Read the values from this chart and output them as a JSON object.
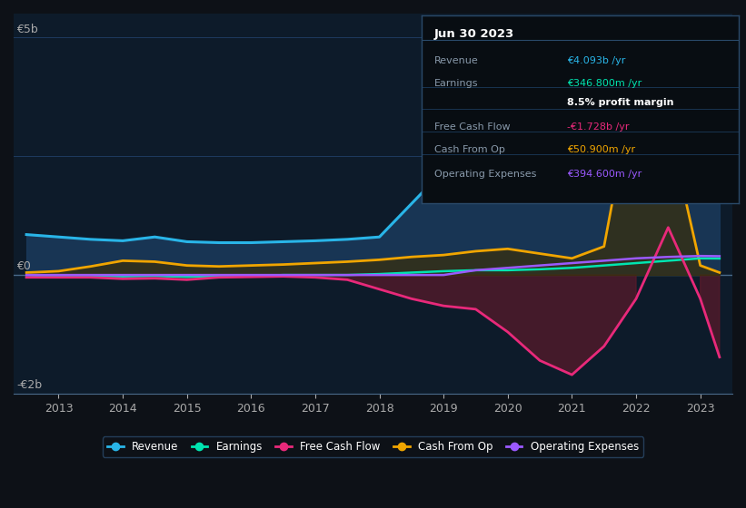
{
  "background_color": "#0d1117",
  "plot_bg_color": "#0d1b2a",
  "grid_color": "#1e3a5f",
  "ylabel_5b": "€5b",
  "ylabel_0": "€0",
  "ylabel_m2b": "-€2b",
  "years": [
    2012.5,
    2013,
    2013.5,
    2014,
    2014.5,
    2015,
    2015.5,
    2016,
    2016.5,
    2017,
    2017.5,
    2018,
    2018.5,
    2019,
    2019.5,
    2020,
    2020.5,
    2021,
    2021.5,
    2022,
    2022.5,
    2023,
    2023.3
  ],
  "revenue": [
    0.85,
    0.8,
    0.75,
    0.72,
    0.8,
    0.7,
    0.68,
    0.68,
    0.7,
    0.72,
    0.75,
    0.8,
    1.5,
    2.2,
    2.6,
    2.55,
    2.4,
    2.5,
    2.6,
    3.2,
    4.09,
    4.09,
    4.09
  ],
  "earnings": [
    -0.05,
    -0.02,
    -0.02,
    -0.03,
    -0.02,
    -0.04,
    -0.03,
    -0.03,
    0.0,
    0.0,
    0.0,
    0.02,
    0.05,
    0.08,
    0.1,
    0.1,
    0.12,
    0.15,
    0.2,
    0.25,
    0.3,
    0.35,
    0.347
  ],
  "free_cash_flow": [
    -0.05,
    -0.05,
    -0.05,
    -0.08,
    -0.07,
    -0.1,
    -0.05,
    -0.04,
    -0.03,
    -0.05,
    -0.1,
    -0.3,
    -0.5,
    -0.65,
    -0.72,
    -1.2,
    -1.8,
    -2.1,
    -1.5,
    -0.5,
    1.0,
    -0.5,
    -1.728
  ],
  "cash_from_op": [
    0.05,
    0.08,
    0.18,
    0.3,
    0.28,
    0.2,
    0.18,
    0.2,
    0.22,
    0.25,
    0.28,
    0.32,
    0.38,
    0.42,
    0.5,
    0.55,
    0.45,
    0.35,
    0.6,
    4.2,
    3.2,
    0.2,
    0.051
  ],
  "operating_expenses": [
    0.0,
    0.0,
    0.0,
    0.0,
    0.0,
    0.0,
    0.0,
    0.0,
    0.0,
    0.0,
    0.0,
    0.0,
    0.0,
    0.0,
    0.1,
    0.15,
    0.2,
    0.25,
    0.3,
    0.35,
    0.38,
    0.4,
    0.395
  ],
  "revenue_color": "#29b5e8",
  "earnings_color": "#00e5b0",
  "fcf_color": "#e8297a",
  "cash_op_color": "#f0a500",
  "op_exp_color": "#9b59ff",
  "revenue_fill": "#1a3a5c",
  "fcf_fill_neg": "#5c1a2a",
  "cash_op_fill": "#3a2e0a",
  "xlim_min": 2012.3,
  "xlim_max": 2023.5,
  "ylim_min": -2.5,
  "ylim_max": 5.5,
  "xticks": [
    2013,
    2014,
    2015,
    2016,
    2017,
    2018,
    2019,
    2020,
    2021,
    2022,
    2023
  ],
  "table_title": "Jun 30 2023",
  "table_rows": [
    [
      "Revenue",
      "€4.093b /yr",
      "#29b5e8"
    ],
    [
      "Earnings",
      "€346.800m /yr",
      "#00e5b0"
    ],
    [
      "",
      "8.5% profit margin",
      "#ffffff"
    ],
    [
      "Free Cash Flow",
      "-€1.728b /yr",
      "#e8297a"
    ],
    [
      "Cash From Op",
      "€50.900m /yr",
      "#f0a500"
    ],
    [
      "Operating Expenses",
      "€394.600m /yr",
      "#9b59ff"
    ]
  ],
  "legend_items": [
    [
      "Revenue",
      "#29b5e8"
    ],
    [
      "Earnings",
      "#00e5b0"
    ],
    [
      "Free Cash Flow",
      "#e8297a"
    ],
    [
      "Cash From Op",
      "#f0a500"
    ],
    [
      "Operating Expenses",
      "#9b59ff"
    ]
  ]
}
